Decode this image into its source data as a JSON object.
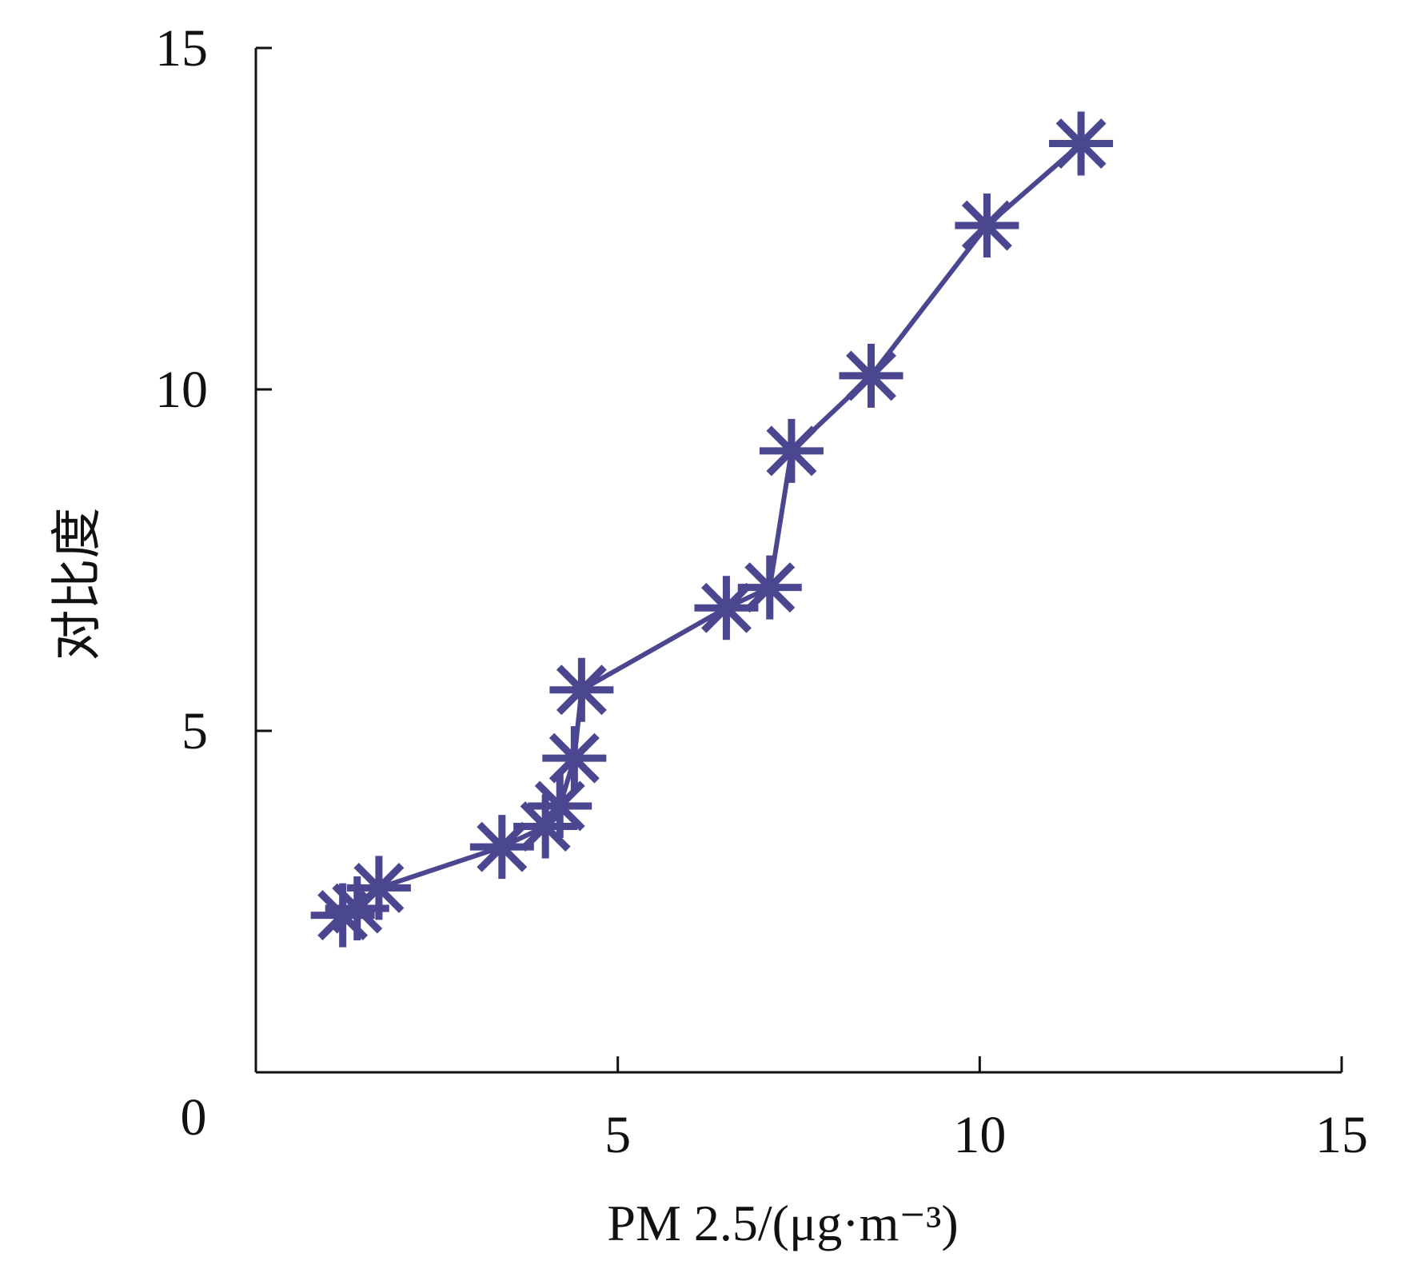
{
  "chart_data": {
    "type": "line",
    "title": "",
    "xlabel": "PM 2.5/(μg·m⁻³)",
    "ylabel": "对比度",
    "xlim": [
      0,
      15
    ],
    "ylim": [
      0,
      15
    ],
    "x_ticks": [
      5,
      10,
      15
    ],
    "y_ticks": [
      5,
      10,
      15
    ],
    "origin_label": "0",
    "grid": false,
    "legend": "none",
    "series_color": "#4b4690",
    "marker": "asterisk",
    "series": [
      {
        "x": [
          1.2,
          1.4,
          1.7,
          3.4,
          4.0,
          4.2,
          4.4,
          4.5,
          6.5,
          7.1,
          7.4,
          8.5,
          10.1,
          11.4
        ],
        "y": [
          2.3,
          2.4,
          2.7,
          3.3,
          3.6,
          3.9,
          4.6,
          5.6,
          6.8,
          7.1,
          9.1,
          10.2,
          12.4,
          13.6
        ]
      }
    ]
  }
}
